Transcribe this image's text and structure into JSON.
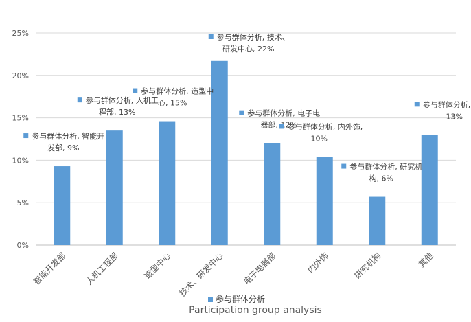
{
  "chart_data": {
    "type": "bar",
    "title": "",
    "xlabel": "Participation group analysis",
    "ylabel": "",
    "ylim": [
      0,
      25
    ],
    "yticks": [
      "0%",
      "5%",
      "10%",
      "15%",
      "20%",
      "25%"
    ],
    "grid": true,
    "legend_position": "bottom",
    "series_color": "#5b9bd5",
    "categories": [
      "智能开发部",
      "人机工程部",
      "造型中心",
      "技术、研发中心",
      "电子电器部",
      "内外饰",
      "研究机构",
      "其他"
    ],
    "series": [
      {
        "name": "参与群体分析",
        "values": [
          9.3,
          13.5,
          14.6,
          21.7,
          12.0,
          10.4,
          5.7,
          13.0
        ],
        "data_labels": [
          [
            "参与群体分析, 智能开",
            "发部, 9%"
          ],
          [
            "参与群体分析, 人机工",
            "程部, 13%"
          ],
          [
            "参与群体分析, 造型中",
            "心, 15%"
          ],
          [
            "参与群体分析, 技术、",
            "研发中心, 22%"
          ],
          [
            "参与群体分析, 电子电",
            "器部, 12%"
          ],
          [
            "参与群体分析, 内外饰,",
            "10%"
          ],
          [
            "参与群体分析, 研究机",
            "构, 6%"
          ],
          [
            "参与群体分析, 其他,",
            "13%"
          ]
        ]
      }
    ]
  }
}
